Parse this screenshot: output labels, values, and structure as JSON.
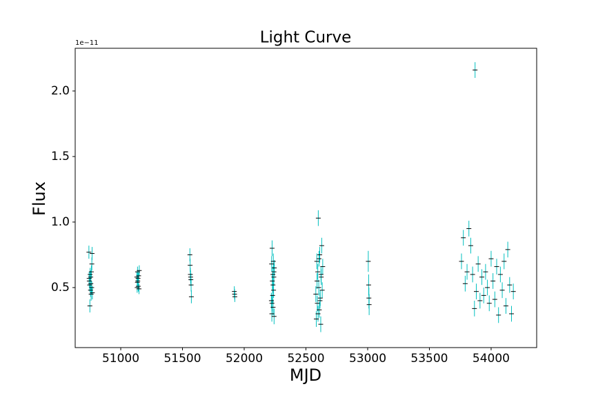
{
  "chart_data": {
    "type": "errorbar",
    "title": "Light Curve",
    "xlabel": "MJD",
    "ylabel": "Flux",
    "offset_text": "1e−11",
    "x": [
      50742,
      50745,
      50748,
      50750,
      50752,
      50755,
      50757,
      50760,
      50762,
      50765,
      50768,
      50770,
      50744,
      50758,
      50766,
      51130,
      51133,
      51136,
      51138,
      51140,
      51142,
      51145,
      51148,
      51150,
      51135,
      51560,
      51562,
      51564,
      51566,
      51568,
      51570,
      51572,
      51920,
      51922,
      51924,
      52220,
      52222,
      52224,
      52226,
      52228,
      52230,
      52232,
      52234,
      52236,
      52238,
      52240,
      52242,
      52244,
      52225,
      52233,
      52241,
      52580,
      52584,
      52588,
      52592,
      52596,
      52600,
      52604,
      52608,
      52612,
      52616,
      52620,
      52624,
      52628,
      52632,
      52636,
      52590,
      52598,
      52606,
      52614,
      52622,
      53005,
      53008,
      53010,
      53012,
      53760,
      53775,
      53790,
      53805,
      53820,
      53835,
      53850,
      53865,
      53870,
      53880,
      53895,
      53910,
      53925,
      53940,
      53955,
      53970,
      53985,
      54000,
      54015,
      54030,
      54045,
      54060,
      54075,
      54090,
      54105,
      54120,
      54135,
      54150,
      54165,
      54180
    ],
    "series": [
      {
        "color": "#00bfbf",
        "marker_color": "#000000",
        "values": [
          0.77,
          0.55,
          0.52,
          0.36,
          0.6,
          0.48,
          0.58,
          0.45,
          0.62,
          0.5,
          0.76,
          0.46,
          0.57,
          0.53,
          0.68,
          0.58,
          0.5,
          0.62,
          0.55,
          0.57,
          0.51,
          0.59,
          0.49,
          0.63,
          0.54,
          0.75,
          0.67,
          0.6,
          0.58,
          0.56,
          0.52,
          0.43,
          0.47,
          0.45,
          0.43,
          0.4,
          0.68,
          0.3,
          0.8,
          0.55,
          0.44,
          0.6,
          0.35,
          0.7,
          0.48,
          0.58,
          0.28,
          0.65,
          0.38,
          0.52,
          0.62,
          0.45,
          0.26,
          0.7,
          0.38,
          0.62,
          1.03,
          0.5,
          0.33,
          0.75,
          0.42,
          0.22,
          0.58,
          0.82,
          0.48,
          0.66,
          0.55,
          0.3,
          0.72,
          0.4,
          0.6,
          0.7,
          0.52,
          0.42,
          0.37,
          0.7,
          0.88,
          0.53,
          0.62,
          0.95,
          0.82,
          0.6,
          0.34,
          2.16,
          0.47,
          0.68,
          0.4,
          0.58,
          0.44,
          0.62,
          0.5,
          0.38,
          0.72,
          0.55,
          0.41,
          0.66,
          0.29,
          0.6,
          0.48,
          0.7,
          0.36,
          0.79,
          0.52,
          0.3,
          0.47
        ],
        "errors": [
          0.05,
          0.05,
          0.05,
          0.05,
          0.05,
          0.05,
          0.05,
          0.05,
          0.05,
          0.05,
          0.05,
          0.05,
          0.05,
          0.05,
          0.05,
          0.04,
          0.04,
          0.04,
          0.04,
          0.04,
          0.04,
          0.04,
          0.04,
          0.04,
          0.04,
          0.05,
          0.05,
          0.05,
          0.05,
          0.05,
          0.05,
          0.05,
          0.04,
          0.04,
          0.04,
          0.06,
          0.06,
          0.06,
          0.06,
          0.06,
          0.06,
          0.06,
          0.06,
          0.06,
          0.06,
          0.06,
          0.06,
          0.06,
          0.06,
          0.06,
          0.06,
          0.06,
          0.06,
          0.06,
          0.06,
          0.06,
          0.06,
          0.06,
          0.06,
          0.06,
          0.06,
          0.06,
          0.06,
          0.06,
          0.06,
          0.06,
          0.06,
          0.06,
          0.06,
          0.06,
          0.06,
          0.08,
          0.08,
          0.08,
          0.08,
          0.06,
          0.06,
          0.06,
          0.06,
          0.06,
          0.06,
          0.06,
          0.06,
          0.06,
          0.06,
          0.06,
          0.06,
          0.06,
          0.06,
          0.06,
          0.06,
          0.06,
          0.06,
          0.06,
          0.06,
          0.06,
          0.06,
          0.06,
          0.06,
          0.06,
          0.06,
          0.06,
          0.06,
          0.06,
          0.06
        ]
      }
    ],
    "xlim": [
      50631,
      54369
    ],
    "ylim": [
      0.042,
      2.326
    ],
    "xticks": [
      51000,
      51500,
      52000,
      52500,
      53000,
      53500,
      54000
    ],
    "yticks": [
      0.5,
      {
        "value": 1,
        "label": "1.0"
      },
      1.5,
      {
        "value": 2,
        "label": "2.0"
      }
    ]
  }
}
